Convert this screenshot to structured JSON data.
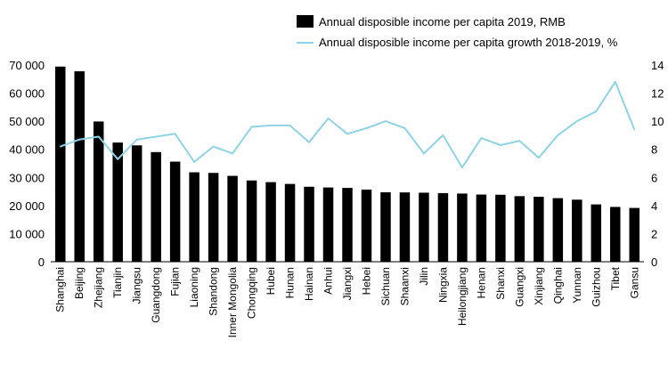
{
  "chart_data": {
    "type": "bar",
    "categories": [
      "Shanghai",
      "Beijing",
      "Zhejiang",
      "Tianjin",
      "Jiangsu",
      "Guangdong",
      "Fujian",
      "Liaoning",
      "Shandong",
      "Inner Mongolia",
      "Chongqing",
      "Hubei",
      "Hunan",
      "Hainan",
      "Anhui",
      "Jiangxi",
      "Hebei",
      "Sichuan",
      "Shaanxi",
      "Jilin",
      "Ningxia",
      "Heilongjiang",
      "Henan",
      "Shanxi",
      "Guangxi",
      "Xinjiang",
      "Qinghai",
      "Yunnan",
      "Guizhou",
      "Tibet",
      "Gansu"
    ],
    "series": [
      {
        "name": "Annual disposible income per capita 2019, RMB",
        "type": "bar",
        "axis": "left",
        "color": "#000000",
        "values": [
          69442,
          67756,
          49899,
          42404,
          41400,
          39014,
          35616,
          31820,
          31597,
          30555,
          28920,
          28319,
          27680,
          26679,
          26415,
          26262,
          25665,
          24703,
          24666,
          24563,
          24412,
          24254,
          23903,
          23828,
          23328,
          23103,
          22618,
          22082,
          20397,
          19501,
          19139
        ]
      },
      {
        "name": "Annual disposible income per capita growth 2018-2019, %",
        "type": "line",
        "axis": "right",
        "color": "#8fd3e6",
        "values": [
          8.2,
          8.7,
          8.9,
          7.3,
          8.7,
          8.9,
          9.1,
          7.1,
          8.2,
          7.7,
          9.6,
          9.7,
          9.7,
          8.5,
          10.2,
          9.1,
          9.5,
          10.0,
          9.5,
          7.7,
          9.0,
          6.7,
          8.8,
          8.3,
          8.6,
          7.4,
          9.0,
          10.0,
          10.7,
          12.8,
          9.4
        ]
      }
    ],
    "left_axis": {
      "ylim": [
        0,
        70000
      ],
      "ticks": [
        "0",
        "10 000",
        "20 000",
        "30 000",
        "40 000",
        "50 000",
        "60 000",
        "70 000"
      ]
    },
    "right_axis": {
      "ylim": [
        0,
        14
      ],
      "ticks": [
        "0",
        "2",
        "4",
        "6",
        "8",
        "10",
        "12",
        "14"
      ]
    },
    "legend_position": "top-right",
    "grid": false
  }
}
